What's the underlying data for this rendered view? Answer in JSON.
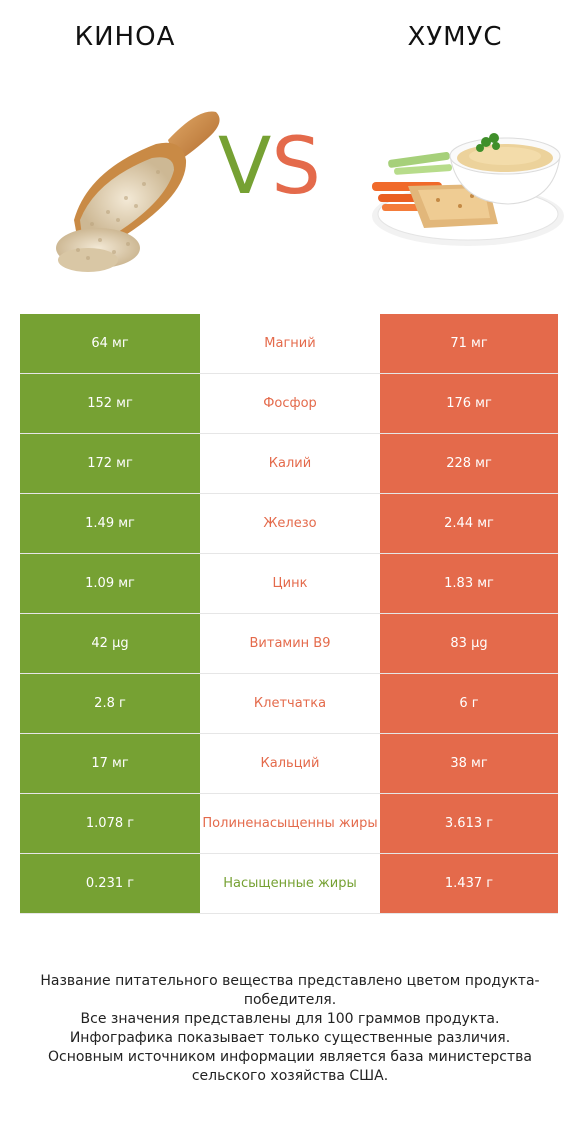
{
  "header": {
    "left_food": "КИНОА",
    "right_food": "ХУМУС",
    "vs_v": "V",
    "vs_s": "S"
  },
  "colors": {
    "left": "#76a133",
    "right": "#e46a4b"
  },
  "rows": [
    {
      "left": "64 мг",
      "nutrient": "Магний",
      "right": "71 мг",
      "winner": "right"
    },
    {
      "left": "152 мг",
      "nutrient": "Фосфор",
      "right": "176 мг",
      "winner": "right"
    },
    {
      "left": "172 мг",
      "nutrient": "Калий",
      "right": "228 мг",
      "winner": "right"
    },
    {
      "left": "1.49 мг",
      "nutrient": "Железо",
      "right": "2.44 мг",
      "winner": "right"
    },
    {
      "left": "1.09 мг",
      "nutrient": "Цинк",
      "right": "1.83 мг",
      "winner": "right"
    },
    {
      "left": "42 µg",
      "nutrient": "Витамин B9",
      "right": "83 µg",
      "winner": "right"
    },
    {
      "left": "2.8 г",
      "nutrient": "Клетчатка",
      "right": "6 г",
      "winner": "right"
    },
    {
      "left": "17 мг",
      "nutrient": "Кальций",
      "right": "38 мг",
      "winner": "right"
    },
    {
      "left": "1.078 г",
      "nutrient": "Полиненасыщенны жиры",
      "right": "3.613 г",
      "winner": "right"
    },
    {
      "left": "0.231 г",
      "nutrient": "Насыщенные жиры",
      "right": "1.437 г",
      "winner": "left"
    }
  ],
  "footer": {
    "line1": "Название питательного вещества представлено цветом продукта-победителя.",
    "line2": "Все значения представлены для 100 граммов продукта.",
    "line3": "Инфографика показывает только существенные различия.",
    "line4": "Основным источником информации является база министерства сельского хозяйства США."
  }
}
